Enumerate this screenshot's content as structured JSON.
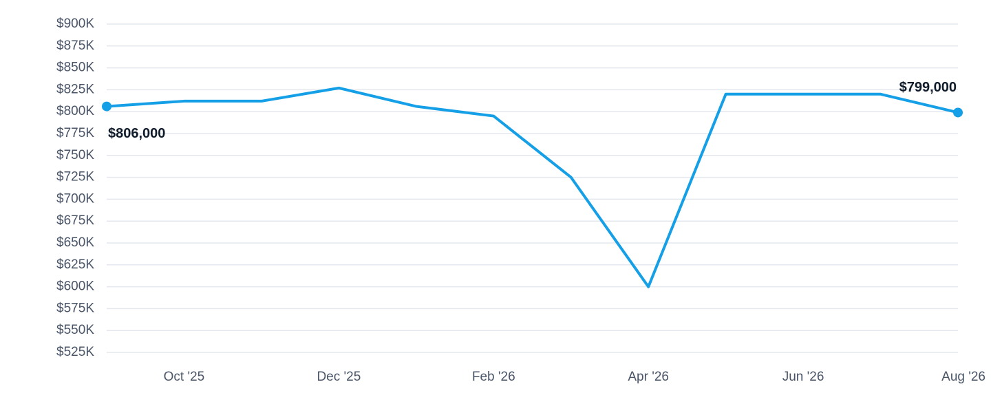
{
  "chart_data": {
    "type": "line",
    "categories": [
      null,
      "Oct '25",
      null,
      "Dec '25",
      null,
      "Feb '26",
      null,
      "Apr '26",
      null,
      "Jun '26",
      null,
      "Aug '26"
    ],
    "series": [
      {
        "color": "#149fe6",
        "values": [
          806000,
          812000,
          812000,
          827000,
          806000,
          795000,
          725000,
          600000,
          820000,
          820000,
          820000,
          799000
        ],
        "value_labels": [
          "$806,000",
          null,
          null,
          null,
          null,
          null,
          null,
          null,
          null,
          null,
          null,
          "$799,000"
        ]
      }
    ],
    "ylim": [
      525000,
      900000
    ],
    "yticks": [
      {
        "value": 525000,
        "label": "$525K"
      },
      {
        "value": 550000,
        "label": "$550K"
      },
      {
        "value": 575000,
        "label": "$575K"
      },
      {
        "value": 600000,
        "label": "$600K"
      },
      {
        "value": 625000,
        "label": "$625K"
      },
      {
        "value": 650000,
        "label": "$650K"
      },
      {
        "value": 675000,
        "label": "$675K"
      },
      {
        "value": 700000,
        "label": "$700K"
      },
      {
        "value": 725000,
        "label": "$725K"
      },
      {
        "value": 750000,
        "label": "$750K"
      },
      {
        "value": 775000,
        "label": "$775K"
      },
      {
        "value": 800000,
        "label": "$800K"
      },
      {
        "value": 825000,
        "label": "$825K"
      },
      {
        "value": 850000,
        "label": "$850K"
      },
      {
        "value": 875000,
        "label": "$875K"
      },
      {
        "value": 900000,
        "label": "$900K"
      }
    ],
    "grid": true
  }
}
